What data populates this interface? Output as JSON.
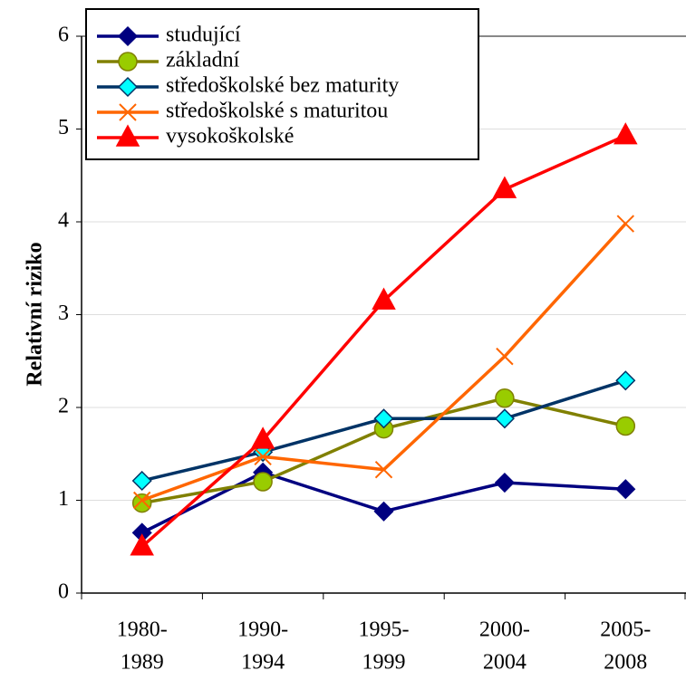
{
  "chart_data": {
    "type": "line",
    "y_label": "Relativní riziko",
    "categories": [
      [
        "1980-",
        "1989"
      ],
      [
        "1990-",
        "1994"
      ],
      [
        "1995-",
        "1999"
      ],
      [
        "2000-",
        "2004"
      ],
      [
        "2005-",
        "2008"
      ]
    ],
    "series": [
      {
        "name": "studující",
        "color": "#000080",
        "marker": "diamond",
        "marker_color": "#000080",
        "values": [
          0.65,
          1.3,
          0.88,
          1.19,
          1.12
        ]
      },
      {
        "name": "základní",
        "color": "#808000",
        "marker": "circle",
        "marker_color": "#99cc00",
        "values": [
          0.97,
          1.2,
          1.77,
          2.1,
          1.8
        ]
      },
      {
        "name": "středoškolské bez maturity",
        "color": "#003366",
        "marker": "diamond",
        "marker_color": "#00ffff",
        "values": [
          1.21,
          1.52,
          1.88,
          1.88,
          2.29
        ]
      },
      {
        "name": "středoškolské s maturitou",
        "color": "#ff6600",
        "marker": "x",
        "marker_color": "#ff6600",
        "values": [
          1.0,
          1.47,
          1.33,
          2.55,
          3.98
        ]
      },
      {
        "name": "vysokoškolské",
        "color": "#ff0000",
        "marker": "triangle",
        "marker_color": "#ff0000",
        "values": [
          0.5,
          1.65,
          3.15,
          4.35,
          4.93
        ]
      }
    ],
    "ylim": [
      0,
      6
    ],
    "yticks": [
      0,
      1,
      2,
      3,
      4,
      5,
      6
    ],
    "grid": true,
    "legend": "upper left"
  }
}
